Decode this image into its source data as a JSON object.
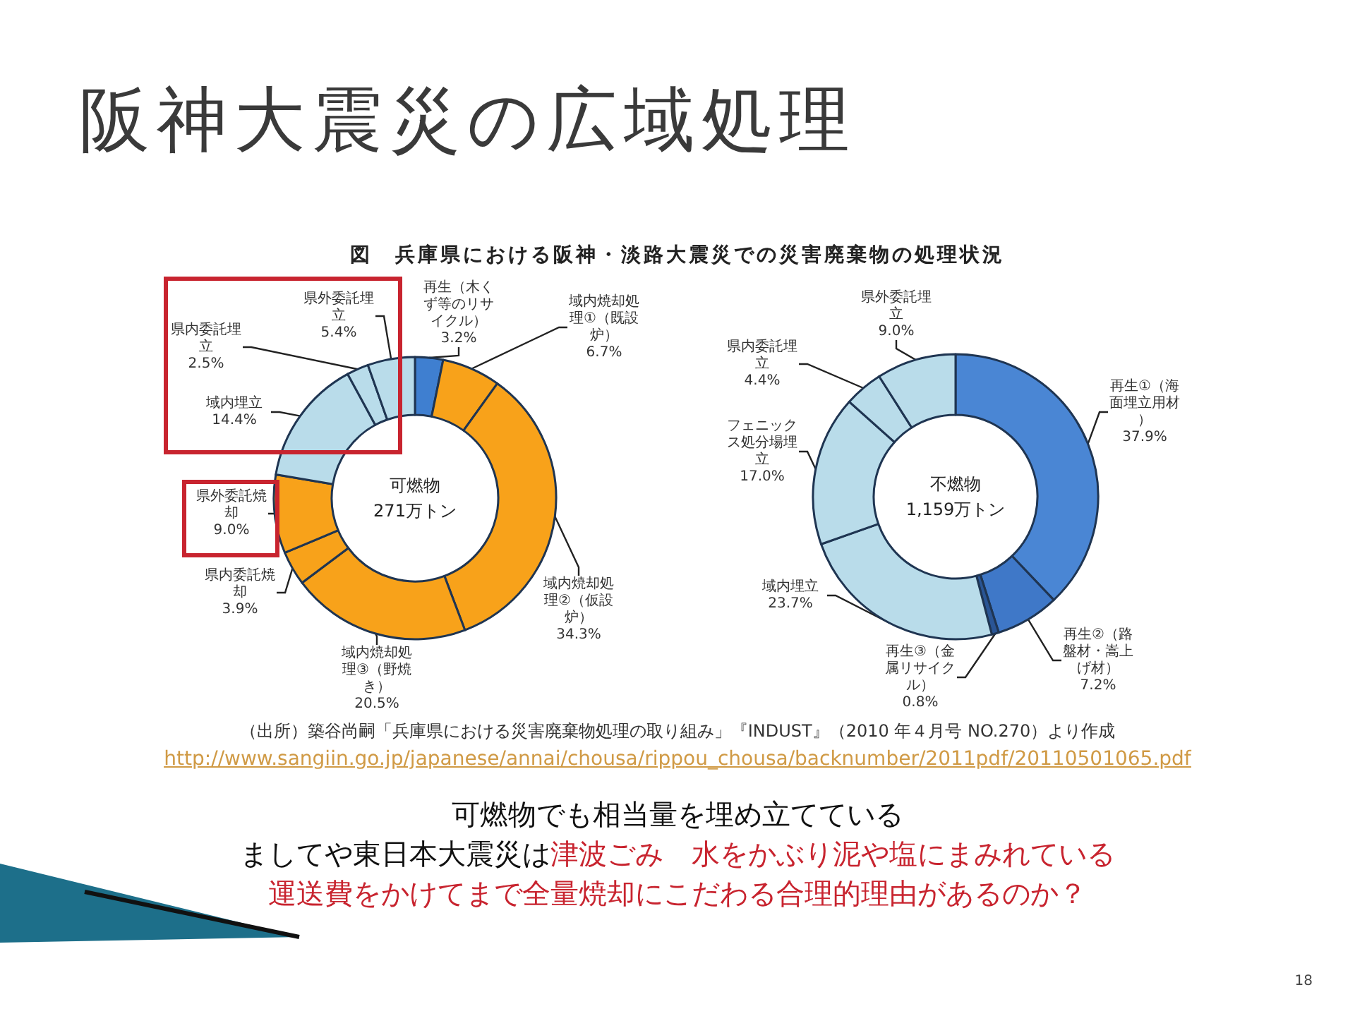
{
  "chart_data": [
    {
      "type": "donut",
      "title": "阪神大震災の広域処理",
      "subtitle": "図　兵庫県における阪神・淡路大震災での災害廃棄物の処理状況",
      "categories": [
        "再生（木くず等のリサイクル）",
        "域内焼却処理①（既設炉）",
        "域内焼却処理②（仮設炉）",
        "域内焼却処理③（野焼き）",
        "県内委託焼却",
        "県外委託焼却",
        "域内埋立",
        "県内委託埋立",
        "県外委託埋立"
      ],
      "values": [
        3.2,
        6.7,
        34.3,
        20.5,
        3.9,
        9.0,
        14.4,
        2.5,
        5.4
      ],
      "value_labels": [
        "3.2%",
        "6.7%",
        "34.3%",
        "20.5%",
        "3.9%",
        "9.0%",
        "14.4%",
        "2.5%",
        "5.4%"
      ],
      "colors": [
        "#3f7fd0",
        "#f8a21a",
        "#f8a21a",
        "#f8a21a",
        "#f8a21a",
        "#f8a21a",
        "#b9dcea",
        "#b9dcea",
        "#b9dcea"
      ],
      "annotations": [
        "可燃物\n271万トン",
        "（出所）築谷尚嗣「兵庫県における災害廃棄物処理の取り組み」『INDUST』（2010 年４月号 NO.270）より作成",
        "http://www.sangiin.go.jp/japanese/annai/chousa/rippou_chousa/backnumber/2011pdf/20110501065.pdf",
        "可燃物でも相当量を埋め立てている",
        "ましてや東日本大震災は",
        "津波ごみ　水をかぶり泥や塩にまみれている",
        "運送費をかけてまで全量焼却にこだわる合理的理由があるのか？",
        "18"
      ]
    },
    {
      "type": "donut",
      "categories": [
        "再生①（海面埋立用材）",
        "再生②（路盤材・嵩上げ材）",
        "再生③（金属リサイクル）",
        "域内埋立",
        "フェニックス処分場埋立",
        "県内委託埋立",
        "県外委託埋立"
      ],
      "values": [
        37.9,
        7.2,
        0.8,
        23.7,
        17.0,
        4.4,
        9.0
      ],
      "value_labels": [
        "37.9%",
        "7.2%",
        "0.8%",
        "23.7%",
        "17.0%",
        "4.4%",
        "9.0%"
      ],
      "colors": [
        "#4a86d4",
        "#3f78c8",
        "#2a5595",
        "#b9dcea",
        "#b9dcea",
        "#b9dcea",
        "#b9dcea"
      ],
      "annotations": [
        "不燃物\n1,159万トン"
      ]
    }
  ]
}
